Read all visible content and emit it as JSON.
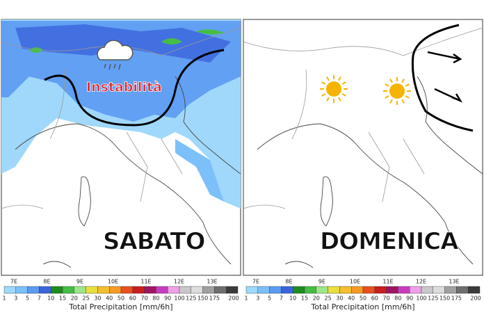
{
  "panels": [
    {
      "day": "SABATO",
      "annotation": "Instabilità",
      "lon_labels": [
        "7E",
        "8E",
        "9E",
        "10E",
        "11E",
        "12E",
        "13E"
      ]
    },
    {
      "day": "DOMENICA",
      "lon_labels": [
        "7E",
        "8E",
        "9E",
        "10E",
        "11E",
        "12E",
        "13E"
      ]
    }
  ],
  "colorbar": {
    "title": "Total Precipitation [mm/6h]",
    "labels": [
      1,
      3,
      5,
      7,
      10,
      15,
      20,
      25,
      30,
      40,
      50,
      60,
      70,
      80,
      90,
      100,
      125,
      150,
      175,
      200
    ],
    "colors": [
      "#9fd8fb",
      "#7cc0fa",
      "#5a9af2",
      "#3c64dc",
      "#1e8c1e",
      "#46be46",
      "#9ee68a",
      "#e8e040",
      "#f4c030",
      "#f89a24",
      "#e8501e",
      "#c81e1e",
      "#a01464",
      "#c83cc0",
      "#f0a0e6",
      "#c8c8c8",
      "#dcdcdc",
      "#a0a0a0",
      "#6e6e6e",
      "#3a3a3a"
    ]
  }
}
